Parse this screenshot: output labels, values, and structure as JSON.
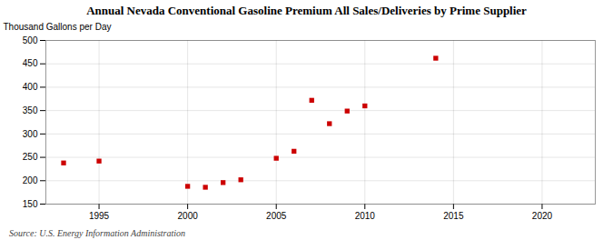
{
  "chart_data": {
    "type": "scatter",
    "title": "Annual Nevada Conventional Gasoline Premium All Sales/Deliveries by Prime Supplier",
    "ylabel": "Thousand Gallons per Day",
    "source": "Source: U.S. Energy Information Administration",
    "x": [
      1993,
      1995,
      2000,
      2001,
      2002,
      2003,
      2005,
      2006,
      2007,
      2008,
      2009,
      2010,
      2014
    ],
    "values": [
      238,
      242,
      188,
      186,
      196,
      202,
      248,
      263,
      372,
      322,
      349,
      360,
      462
    ],
    "color": "#cc0000",
    "marker": "square",
    "xlim": [
      1992,
      2023
    ],
    "ylim": [
      150,
      500
    ],
    "xticks": [
      1995,
      2000,
      2005,
      2010,
      2015,
      2020
    ],
    "yticks": [
      150,
      200,
      250,
      300,
      350,
      400,
      450,
      500
    ],
    "grid": true
  }
}
